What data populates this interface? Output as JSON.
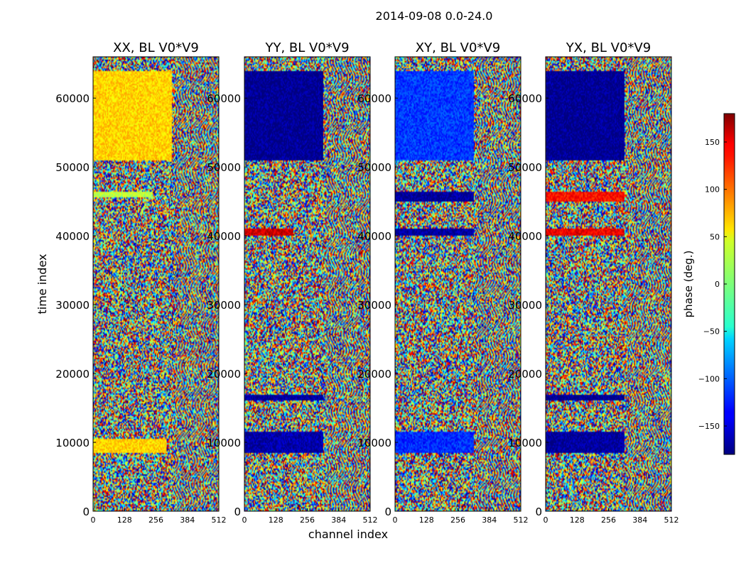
{
  "figure": {
    "suptitle": "2014-09-08 0.0-24.0"
  },
  "colors": {
    "cmap": "jet",
    "axis_color": "#000000",
    "background": "#ffffff"
  },
  "chart_data": [
    {
      "type": "heatmap",
      "title": "XX, BL V0*V9",
      "xlabel": "channel index",
      "ylabel": "time index",
      "xlim": [
        0,
        512
      ],
      "ylim": [
        0,
        66000
      ],
      "xticks": [
        "0",
        "128",
        "256",
        "384",
        "512"
      ],
      "yticks": [
        "0",
        "10000",
        "20000",
        "30000",
        "40000",
        "50000",
        "60000"
      ],
      "dominant_bands": [
        {
          "t_range": [
            51000,
            64000
          ],
          "ch_range": [
            0,
            320
          ],
          "phase_deg": 60
        },
        {
          "t_range": [
            8500,
            10500
          ],
          "ch_range": [
            0,
            300
          ],
          "phase_deg": 60
        },
        {
          "t_range": [
            45500,
            46500
          ],
          "ch_range": [
            0,
            240
          ],
          "phase_deg": 20
        }
      ]
    },
    {
      "type": "heatmap",
      "title": "YY, BL V0*V9",
      "xlabel": "channel index",
      "ylabel": "",
      "xlim": [
        0,
        512
      ],
      "ylim": [
        0,
        66000
      ],
      "xticks": [
        "0",
        "128",
        "256",
        "384",
        "512"
      ],
      "yticks": [
        "0",
        "10000",
        "20000",
        "30000",
        "40000",
        "50000",
        "60000"
      ],
      "dominant_bands": [
        {
          "t_range": [
            51000,
            64000
          ],
          "ch_range": [
            0,
            320
          ],
          "phase_deg": -175
        },
        {
          "t_range": [
            16000,
            17000
          ],
          "ch_range": [
            0,
            320
          ],
          "phase_deg": -170
        },
        {
          "t_range": [
            8500,
            11500
          ],
          "ch_range": [
            0,
            320
          ],
          "phase_deg": -165
        },
        {
          "t_range": [
            40000,
            41000
          ],
          "ch_range": [
            0,
            200
          ],
          "phase_deg": 150
        }
      ]
    },
    {
      "type": "heatmap",
      "title": "XY, BL V0*V9",
      "xlabel": "channel index",
      "ylabel": "",
      "xlim": [
        0,
        512
      ],
      "ylim": [
        0,
        66000
      ],
      "xticks": [
        "0",
        "128",
        "256",
        "384",
        "512"
      ],
      "yticks": [
        "0",
        "10000",
        "20000",
        "30000",
        "40000",
        "50000",
        "60000"
      ],
      "dominant_bands": [
        {
          "t_range": [
            51000,
            64000
          ],
          "ch_range": [
            0,
            320
          ],
          "phase_deg": -115
        },
        {
          "t_range": [
            45000,
            46500
          ],
          "ch_range": [
            0,
            320
          ],
          "phase_deg": -170
        },
        {
          "t_range": [
            8500,
            11500
          ],
          "ch_range": [
            0,
            320
          ],
          "phase_deg": -120
        },
        {
          "t_range": [
            40000,
            41000
          ],
          "ch_range": [
            0,
            320
          ],
          "phase_deg": -170
        }
      ]
    },
    {
      "type": "heatmap",
      "title": "YX, BL V0*V9",
      "xlabel": "channel index",
      "ylabel": "",
      "xlim": [
        0,
        512
      ],
      "ylim": [
        0,
        66000
      ],
      "xticks": [
        "0",
        "128",
        "256",
        "384",
        "512"
      ],
      "yticks": [
        "0",
        "10000",
        "20000",
        "30000",
        "40000",
        "50000",
        "60000"
      ],
      "dominant_bands": [
        {
          "t_range": [
            51000,
            64000
          ],
          "ch_range": [
            0,
            320
          ],
          "phase_deg": -175
        },
        {
          "t_range": [
            45000,
            46500
          ],
          "ch_range": [
            0,
            320
          ],
          "phase_deg": 130
        },
        {
          "t_range": [
            40000,
            41000
          ],
          "ch_range": [
            0,
            320
          ],
          "phase_deg": 140
        },
        {
          "t_range": [
            16000,
            17000
          ],
          "ch_range": [
            0,
            320
          ],
          "phase_deg": -175
        },
        {
          "t_range": [
            8500,
            11500
          ],
          "ch_range": [
            0,
            320
          ],
          "phase_deg": -170
        }
      ]
    }
  ],
  "colorbar": {
    "label": "phase (deg.)",
    "range": [
      -180,
      180
    ],
    "ticks": [
      "150",
      "100",
      "50",
      "0",
      "−50",
      "−100",
      "−150"
    ],
    "tick_values": [
      150,
      100,
      50,
      0,
      -50,
      -100,
      -150
    ]
  }
}
